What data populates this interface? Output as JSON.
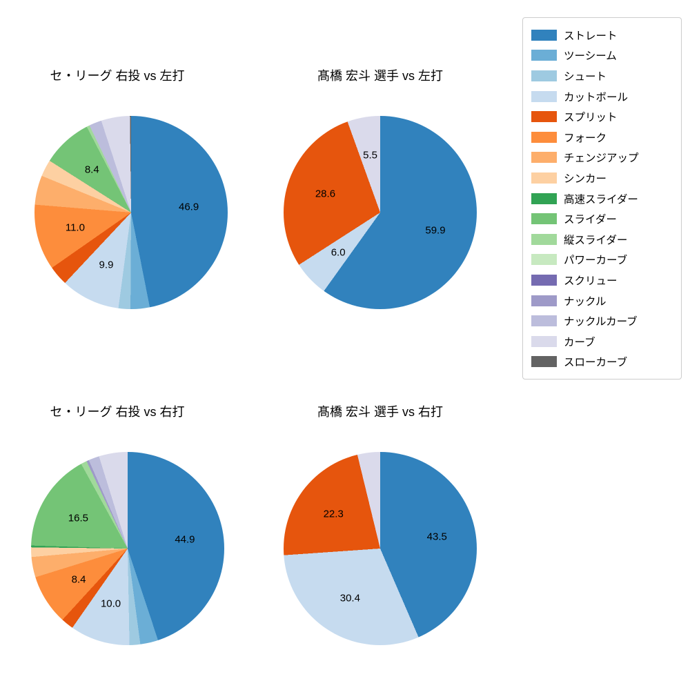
{
  "background": "#ffffff",
  "legend": {
    "items": [
      {
        "label": "ストレート",
        "color": "#3182bd"
      },
      {
        "label": "ツーシーム",
        "color": "#6baed6"
      },
      {
        "label": "シュート",
        "color": "#9ecae1"
      },
      {
        "label": "カットボール",
        "color": "#c6dbef"
      },
      {
        "label": "スプリット",
        "color": "#e6550d"
      },
      {
        "label": "フォーク",
        "color": "#fd8d3c"
      },
      {
        "label": "チェンジアップ",
        "color": "#fdae6b"
      },
      {
        "label": "シンカー",
        "color": "#fdd0a2"
      },
      {
        "label": "高速スライダー",
        "color": "#31a354"
      },
      {
        "label": "スライダー",
        "color": "#74c476"
      },
      {
        "label": "縦スライダー",
        "color": "#a1d99b"
      },
      {
        "label": "パワーカーブ",
        "color": "#c7e9c0"
      },
      {
        "label": "スクリュー",
        "color": "#756bb1"
      },
      {
        "label": "ナックル",
        "color": "#9e9ac8"
      },
      {
        "label": "ナックルカーブ",
        "color": "#bcbddc"
      },
      {
        "label": "カーブ",
        "color": "#dadaeb"
      },
      {
        "label": "スローカーブ",
        "color": "#636363"
      }
    ]
  },
  "chart_data": [
    {
      "type": "pie",
      "title": "セ・リーグ 右投 vs 左打",
      "start_angle": "top",
      "direction": "clockwise",
      "label_min_pct": 5,
      "slices": [
        {
          "label": "ストレート",
          "value": 46.9
        },
        {
          "label": "ツーシーム",
          "value": 3.2
        },
        {
          "label": "シュート",
          "value": 2.0
        },
        {
          "label": "カットボール",
          "value": 9.9
        },
        {
          "label": "スプリット",
          "value": 3.3
        },
        {
          "label": "フォーク",
          "value": 11.0
        },
        {
          "label": "チェンジアップ",
          "value": 4.9
        },
        {
          "label": "シンカー",
          "value": 2.8
        },
        {
          "label": "スライダー",
          "value": 8.4
        },
        {
          "label": "縦スライダー",
          "value": 0.5
        },
        {
          "label": "ナックルカーブ",
          "value": 2.1
        },
        {
          "label": "カーブ",
          "value": 4.8
        },
        {
          "label": "スローカーブ",
          "value": 0.2
        }
      ]
    },
    {
      "type": "pie",
      "title": "髙橋 宏斗 選手 vs 左打",
      "start_angle": "top",
      "direction": "clockwise",
      "label_min_pct": 5,
      "slices": [
        {
          "label": "ストレート",
          "value": 59.9
        },
        {
          "label": "カットボール",
          "value": 6.0
        },
        {
          "label": "スプリット",
          "value": 28.6
        },
        {
          "label": "カーブ",
          "value": 5.5
        }
      ]
    },
    {
      "type": "pie",
      "title": "セ・リーグ 右投 vs 右打",
      "start_angle": "top",
      "direction": "clockwise",
      "label_min_pct": 5,
      "slices": [
        {
          "label": "ストレート",
          "value": 44.9
        },
        {
          "label": "ツーシーム",
          "value": 3.0
        },
        {
          "label": "シュート",
          "value": 1.8
        },
        {
          "label": "カットボール",
          "value": 10.0
        },
        {
          "label": "スプリット",
          "value": 2.1
        },
        {
          "label": "フォーク",
          "value": 8.4
        },
        {
          "label": "チェンジアップ",
          "value": 3.4
        },
        {
          "label": "シンカー",
          "value": 1.6
        },
        {
          "label": "高速スライダー",
          "value": 0.3
        },
        {
          "label": "スライダー",
          "value": 16.5
        },
        {
          "label": "縦スライダー",
          "value": 1.0
        },
        {
          "label": "ナックル",
          "value": 0.4
        },
        {
          "label": "ナックルカーブ",
          "value": 1.8
        },
        {
          "label": "カーブ",
          "value": 4.8
        }
      ]
    },
    {
      "type": "pie",
      "title": "髙橋 宏斗 選手 vs 右打",
      "start_angle": "top",
      "direction": "clockwise",
      "label_min_pct": 5,
      "slices": [
        {
          "label": "ストレート",
          "value": 43.5
        },
        {
          "label": "カットボール",
          "value": 30.4
        },
        {
          "label": "スプリット",
          "value": 22.3
        },
        {
          "label": "カーブ",
          "value": 3.8
        }
      ]
    }
  ]
}
